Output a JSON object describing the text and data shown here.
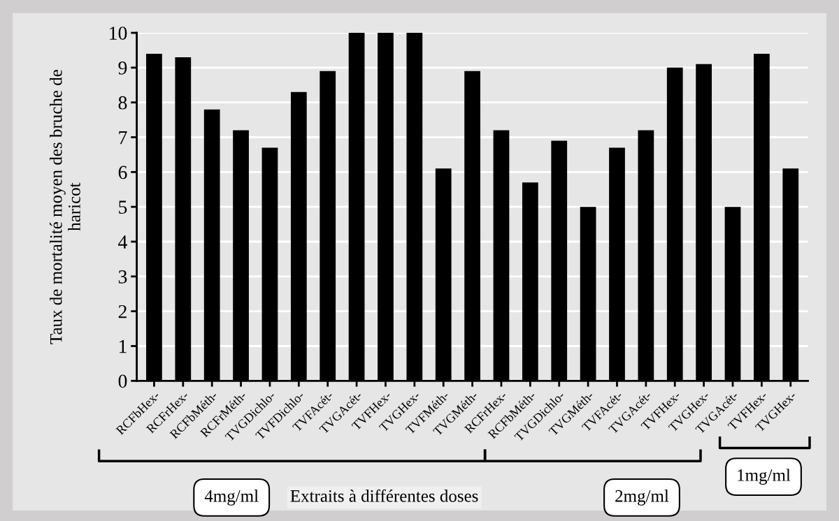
{
  "chart_data": {
    "type": "bar",
    "ylabel": "Taux de mortalité moyen des bruche de\nharicot",
    "xlabel": "Extraits à différentes doses",
    "categories": [
      "RCFbHex-",
      "RCFrHex-",
      "RCFbMéth-",
      "RCFrMéth-",
      "TVGDichlo-",
      "TVFDichlo-",
      "TVFAcét-",
      "TVGAcét-",
      "TVFHex-",
      "TVGHex-",
      "TVFMéth-",
      "TVGMéth-",
      "RCFrHex-",
      "RCFbMéth-",
      "TVGDichlo-",
      "TVGMéth-",
      "TVFAcét-",
      "TVGAcét-",
      "TVFHex-",
      "TVGHex-",
      "TVGAcét-",
      "TVFHex-",
      "TVGHex-"
    ],
    "values": [
      9.4,
      9.3,
      7.8,
      7.2,
      6.7,
      8.3,
      8.9,
      10,
      10,
      10,
      6.1,
      8.9,
      7.2,
      5.7,
      6.9,
      5.0,
      6.7,
      7.2,
      9.0,
      9.1,
      5.0,
      9.4,
      6.1
    ],
    "color": "#000000",
    "ylim": [
      0,
      10
    ],
    "yticks": [
      0,
      1,
      2,
      3,
      4,
      5,
      6,
      7,
      8,
      9,
      10
    ],
    "grid": "y",
    "annotations": [
      "4mg/ml",
      "2mg/ml",
      "1mg/ml"
    ]
  }
}
